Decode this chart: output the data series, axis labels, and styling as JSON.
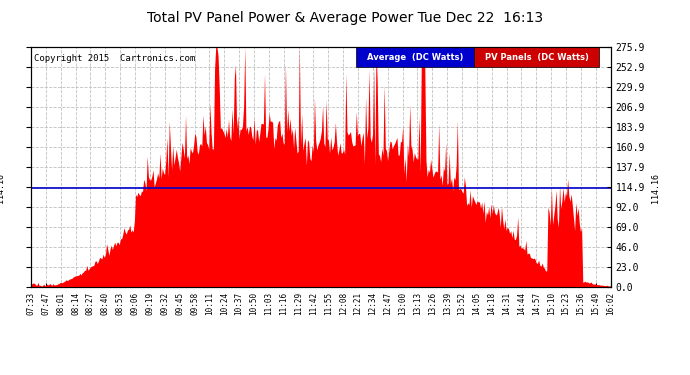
{
  "title": "Total PV Panel Power & Average Power Tue Dec 22  16:13",
  "copyright": "Copyright 2015  Cartronics.com",
  "average_value": 114.16,
  "avg_label": "Average  (DC Watts)",
  "pv_label": "PV Panels  (DC Watts)",
  "ylim": [
    0.0,
    275.9
  ],
  "yticks": [
    0.0,
    23.0,
    46.0,
    69.0,
    92.0,
    114.9,
    137.9,
    160.9,
    183.9,
    206.9,
    229.9,
    252.9,
    275.9
  ],
  "bg_color": "#ffffff",
  "plot_bg_color": "#ffffff",
  "grid_color": "#c0c0c0",
  "fill_color": "#ff0000",
  "avg_line_color": "#0000cc",
  "avg_label_bg": "#0000cc",
  "pv_label_bg": "#cc0000",
  "xtick_labels": [
    "07:33",
    "07:47",
    "08:01",
    "08:14",
    "08:27",
    "08:40",
    "08:53",
    "09:06",
    "09:19",
    "09:32",
    "09:45",
    "09:58",
    "10:11",
    "10:24",
    "10:37",
    "10:50",
    "11:03",
    "11:16",
    "11:29",
    "11:42",
    "11:55",
    "12:08",
    "12:21",
    "12:34",
    "12:47",
    "13:00",
    "13:13",
    "13:26",
    "13:39",
    "13:52",
    "14:05",
    "14:18",
    "14:31",
    "14:44",
    "14:57",
    "15:10",
    "15:23",
    "15:36",
    "15:49",
    "16:02"
  ]
}
